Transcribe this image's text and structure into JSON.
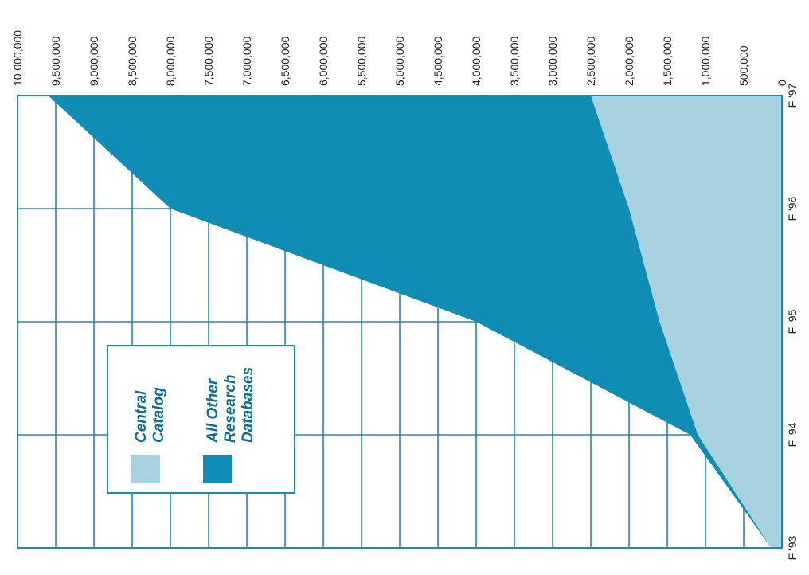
{
  "chart_data": {
    "type": "area",
    "stacked": true,
    "orientation": "rotated-90-clockwise",
    "categories": [
      "F '93",
      "F '94",
      "F '95",
      "F '96",
      "F '97"
    ],
    "series": [
      {
        "name": "Central Catalog",
        "values": [
          140000,
          1100000,
          1600000,
          2000000,
          2500000
        ]
      },
      {
        "name": "All Other Research Databases",
        "values": [
          0,
          100000,
          2400000,
          6000000,
          7100000
        ]
      }
    ],
    "ylim": [
      0,
      10000000
    ],
    "y_ticks": [
      "0",
      "500,000",
      "1,000,000",
      "1,500,000",
      "2,000,000",
      "2,500,000",
      "3,000,000",
      "3,500,000",
      "4,000,000",
      "4,500,000",
      "5,000,000",
      "5,500,000",
      "6,000,000",
      "6,500,000",
      "7,000,000",
      "7,500,000",
      "8,000,000",
      "8,500,000",
      "9,000,000",
      "9,500,000",
      "10,000,000"
    ],
    "legend": {
      "placement": "bottom-center",
      "items": [
        {
          "lines": [
            "Central",
            "Catalog"
          ],
          "color": "#a6d3df"
        },
        {
          "lines": [
            "All Other",
            "Research",
            "Databases"
          ],
          "color": "#0f8db5"
        }
      ]
    },
    "colors": {
      "central_catalog": "#a6d3df",
      "other_databases": "#0f8db5",
      "grid": "#1b8bb0",
      "legend_text": "#0b6f92"
    },
    "grid": true
  }
}
